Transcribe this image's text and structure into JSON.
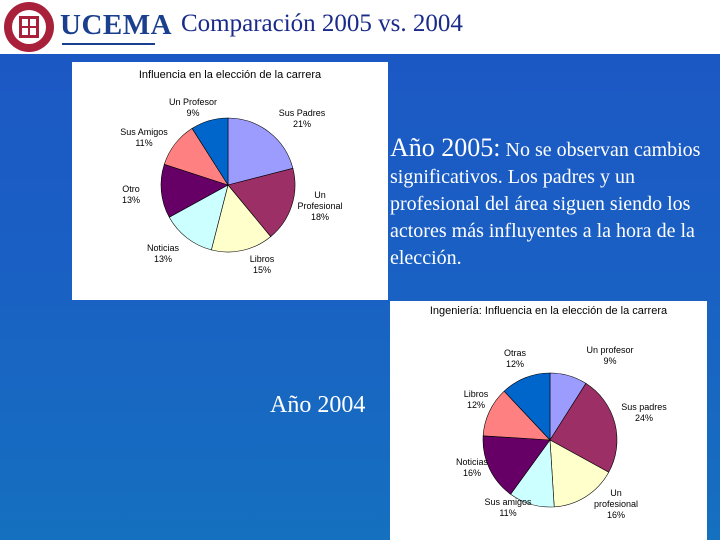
{
  "header": {
    "logo_text": "UCEMA",
    "title": "Comparación 2005 vs. 2004"
  },
  "colors": {
    "background": "#1d56c4",
    "title_color": "#1a2a8a",
    "seal_color": "#a8203a"
  },
  "text_block": {
    "year_label": "Año 2005",
    "colon": ":",
    "body": "No se observan cambios significativos. Los padres y un profesional del área siguen siendo los actores más influyentes a la hora de la elección."
  },
  "label_2004": "Año 2004",
  "chart_data": [
    {
      "type": "pie",
      "title": "Influencia en la elección de la carrera",
      "slices": [
        {
          "name": "Sus Padres",
          "value": 21,
          "label": "21%",
          "color": "#9c9cff"
        },
        {
          "name": "Un Profesional",
          "value": 18,
          "label": "18%",
          "color": "#9c2f66"
        },
        {
          "name": "Libros",
          "value": 15,
          "label": "15%",
          "color": "#ffffcc"
        },
        {
          "name": "Noticias",
          "value": 13,
          "label": "13%",
          "color": "#ccffff"
        },
        {
          "name": "Otro",
          "value": 13,
          "label": "13%",
          "color": "#660066"
        },
        {
          "name": "Sus Amigos",
          "value": 11,
          "label": "11%",
          "color": "#ff8080"
        },
        {
          "name": "Un Profesor",
          "value": 9,
          "label": "9%",
          "color": "#0066cc"
        }
      ]
    },
    {
      "type": "pie",
      "title": "Ingeniería: Influencia en la elección de la carrera",
      "slices": [
        {
          "name": "Un profesor",
          "value": 9,
          "label": "9%",
          "color": "#9c9cff"
        },
        {
          "name": "Sus padres",
          "value": 24,
          "label": "24%",
          "color": "#9c2f66"
        },
        {
          "name": "Un profesional",
          "value": 16,
          "label": "16%",
          "color": "#ffffcc"
        },
        {
          "name": "Sus amigos",
          "value": 11,
          "label": "11%",
          "color": "#ccffff"
        },
        {
          "name": "Noticias",
          "value": 16,
          "label": "16%",
          "color": "#660066"
        },
        {
          "name": "Libros",
          "value": 12,
          "label": "12%",
          "color": "#ff8080"
        },
        {
          "name": "Otras",
          "value": 12,
          "label": "12%",
          "color": "#0066cc"
        }
      ]
    }
  ]
}
